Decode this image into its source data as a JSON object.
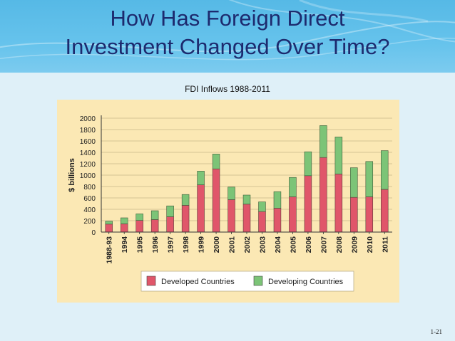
{
  "slide": {
    "title_line1": "How Has Foreign Direct",
    "title_line2": "Investment Changed Over Time?",
    "page_number": "1-21"
  },
  "chart_data": {
    "type": "bar",
    "stacked": true,
    "title": "FDI Inflows 1988-2011",
    "ylabel": "$ billions",
    "ylim": [
      0,
      2000
    ],
    "yticks": [
      0,
      200,
      400,
      600,
      800,
      1000,
      1200,
      1400,
      1600,
      1800,
      2000
    ],
    "grid": true,
    "legend_position": "bottom",
    "categories": [
      "1988-93",
      "1994",
      "1995",
      "1996",
      "1997",
      "1998",
      "1999",
      "2000",
      "2001",
      "2002",
      "2003",
      "2004",
      "2005",
      "2006",
      "2007",
      "2008",
      "2009",
      "2010",
      "2011"
    ],
    "series": [
      {
        "name": "Developed Countries",
        "color": "#e0566a",
        "values": [
          140,
          145,
          205,
          220,
          270,
          470,
          830,
          1110,
          570,
          490,
          360,
          420,
          620,
          990,
          1310,
          1020,
          610,
          620,
          750
        ]
      },
      {
        "name": "Developing Countries",
        "color": "#7cc477",
        "values": [
          50,
          105,
          115,
          155,
          190,
          190,
          240,
          260,
          220,
          160,
          170,
          290,
          340,
          420,
          560,
          650,
          520,
          620,
          680
        ]
      }
    ]
  }
}
